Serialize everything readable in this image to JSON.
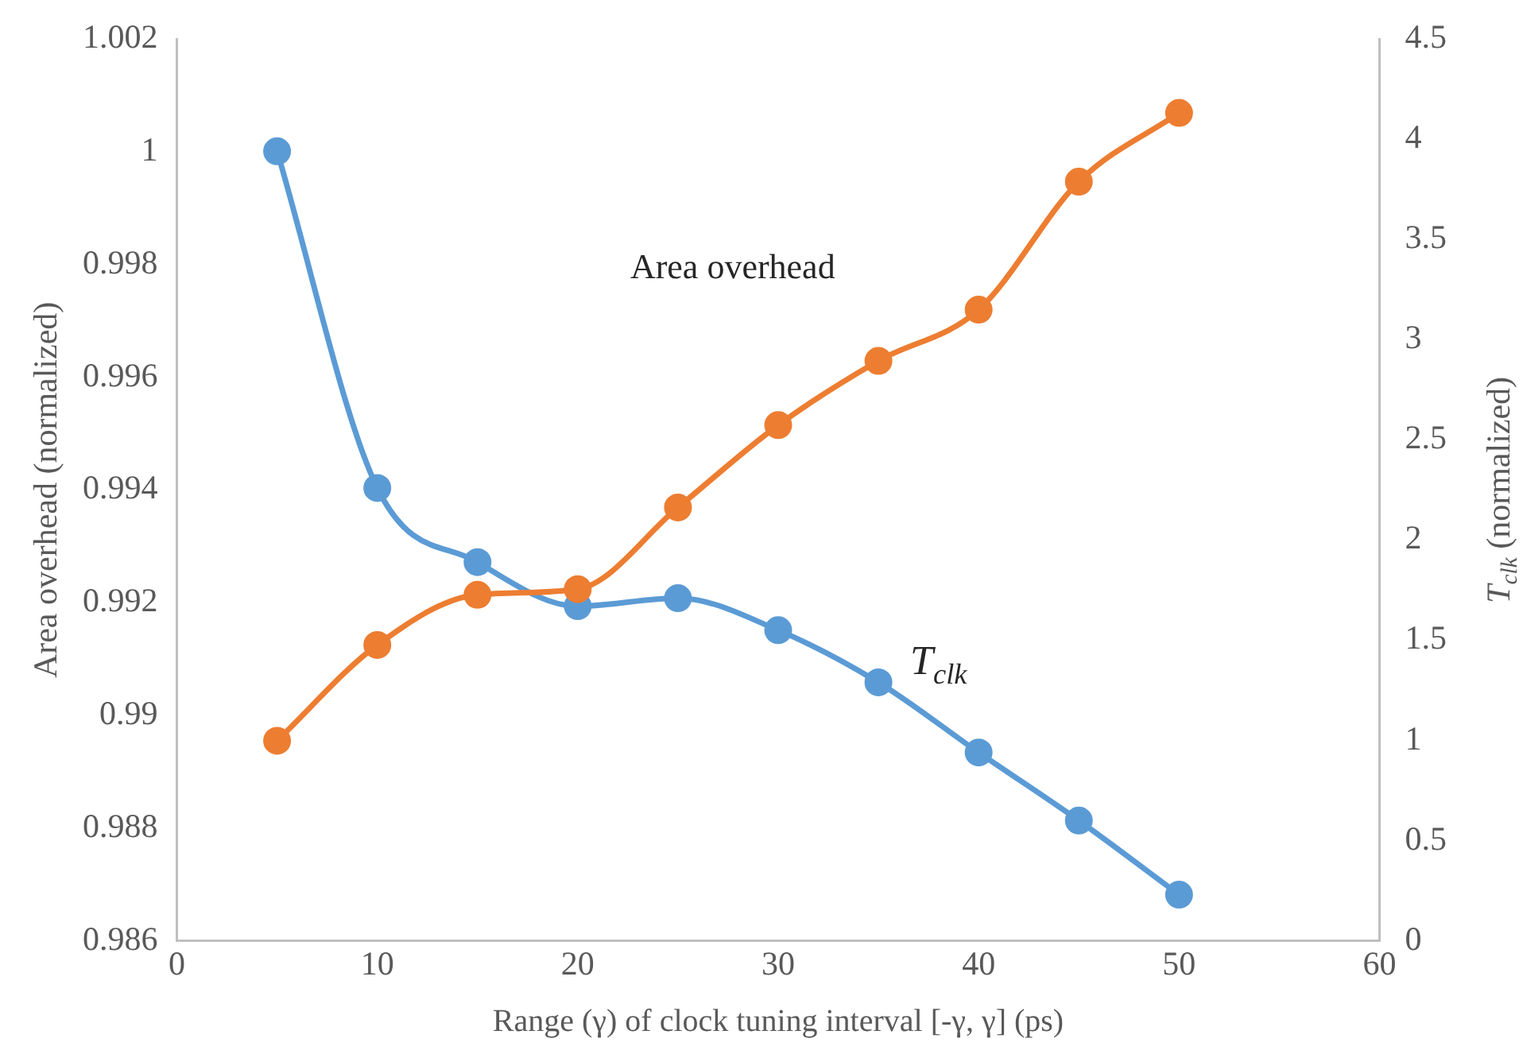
{
  "chart_data": {
    "type": "line",
    "xlabel": "Range (γ) of clock tuning interval [-γ, γ] (ps)",
    "ylabel": "Area overhead (normalized)",
    "y2label": "T$_{clk}$ (normalized)",
    "x": [
      5,
      10,
      15,
      20,
      25,
      30,
      35,
      40,
      45,
      50
    ],
    "xlim": [
      0,
      60
    ],
    "xticks": [
      0,
      10,
      20,
      30,
      40,
      50,
      60
    ],
    "ylim": [
      0.986,
      1.002
    ],
    "yticks": [
      0.986,
      0.988,
      0.99,
      0.992,
      0.994,
      0.996,
      0.998,
      1,
      1.002
    ],
    "y2lim": [
      0,
      4.5
    ],
    "y2ticks": [
      0,
      0.5,
      1,
      1.5,
      2,
      2.5,
      3,
      3.5,
      4,
      4.5
    ],
    "series": [
      {
        "name": "Area overhead",
        "color": "#ed7d31",
        "values": [
          0.98955,
          0.99125,
          0.99214,
          0.99224,
          0.99369,
          0.99515,
          0.99629,
          0.9972,
          0.99947,
          1.00069
        ]
      },
      {
        "name": "T$_{clk}$",
        "color": "#5b9bd5",
        "axis": "y2",
        "values": [
          3.94,
          2.26,
          1.89,
          1.67,
          1.71,
          1.55,
          1.29,
          0.94,
          0.6,
          0.23
        ]
      }
    ],
    "grid": false,
    "legend": false,
    "marker": "circle",
    "line_style": "solid"
  }
}
